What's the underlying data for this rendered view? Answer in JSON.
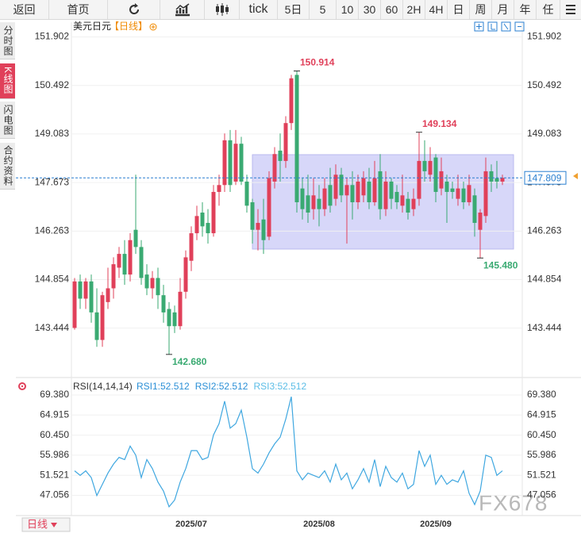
{
  "toolbar": {
    "items": [
      "返回",
      "首页",
      "tick",
      "5日",
      "5",
      "10",
      "30",
      "60",
      "2H",
      "4H",
      "日",
      "周",
      "月",
      "年",
      "任"
    ]
  },
  "sidebar": {
    "items": [
      "分时图",
      "K线图",
      "闪电图",
      "合约资料"
    ]
  },
  "footer": {
    "period_button": "日线",
    "watermark": "FX678"
  },
  "chart_data": [
    {
      "type": "candlestick",
      "title": "美元日元",
      "subtitle": "【日线】",
      "categories": [
        null,
        null,
        null,
        null,
        null,
        null,
        null,
        null,
        null,
        null,
        null,
        null,
        null,
        null,
        null,
        null,
        null,
        null,
        null,
        null,
        null,
        "2025/07",
        null,
        null,
        null,
        null,
        null,
        null,
        null,
        null,
        null,
        null,
        null,
        null,
        null,
        null,
        null,
        null,
        null,
        null,
        null,
        null,
        null,
        null,
        "2025/08",
        null,
        null,
        null,
        null,
        null,
        null,
        null,
        null,
        null,
        null,
        null,
        null,
        null,
        null,
        null,
        null,
        null,
        null,
        null,
        null,
        "2025/09",
        null,
        null,
        null,
        null,
        null,
        null,
        null,
        null,
        null,
        null,
        null,
        null
      ],
      "open": [
        143.45,
        144.8,
        144.3,
        144.8,
        143.9,
        143.1,
        144.2,
        144.6,
        145.2,
        145.6,
        145.0,
        146.3,
        145.8,
        145.0,
        144.6,
        144.9,
        144.4,
        144.0,
        143.9,
        143.5,
        144.5,
        145.4,
        146.2,
        146.8,
        146.5,
        146.2,
        147.4,
        147.6,
        148.9,
        147.7,
        148.8,
        147.7,
        147.1,
        146.3,
        146.6,
        146.1,
        147.7,
        148.6,
        148.3,
        149.4,
        150.8,
        147.5,
        147.3,
        146.9,
        147.2,
        146.9,
        147.6,
        147.2,
        147.9,
        147.3,
        147.6,
        147.1,
        147.3,
        147.7,
        147.1,
        148.0,
        146.9,
        147.7,
        147.4,
        147.0,
        147.2,
        146.9,
        147.2,
        148.3,
        147.9,
        148.4,
        147.5,
        147.7,
        147.5,
        147.2,
        147.5,
        147.1,
        147.3,
        146.3,
        146.7,
        148.0,
        147.8,
        147.7
      ],
      "high": [
        144.9,
        145.0,
        144.9,
        145.0,
        144.6,
        144.5,
        145.2,
        145.5,
        145.8,
        146.0,
        146.2,
        147.9,
        146.0,
        145.3,
        145.1,
        145.2,
        144.7,
        144.2,
        144.1,
        144.9,
        145.7,
        146.4,
        147.0,
        147.1,
        146.9,
        147.6,
        147.9,
        149.1,
        149.2,
        149.2,
        149.0,
        147.9,
        147.2,
        146.9,
        147.2,
        148.0,
        148.7,
        149.1,
        149.6,
        150.8,
        150.914,
        147.8,
        147.9,
        147.8,
        147.6,
        147.8,
        148.1,
        148.2,
        148.1,
        147.8,
        148.0,
        147.9,
        148.0,
        148.1,
        148.3,
        148.5,
        148.0,
        147.8,
        147.6,
        147.9,
        147.4,
        147.5,
        149.134,
        148.9,
        148.7,
        148.5,
        148.4,
        147.9,
        147.7,
        147.9,
        147.7,
        147.9,
        147.5,
        146.9,
        148.4,
        148.2,
        148.3,
        147.9
      ],
      "low": [
        143.4,
        144.0,
        144.0,
        143.6,
        142.9,
        142.9,
        144.0,
        144.3,
        144.9,
        144.7,
        144.8,
        145.6,
        144.7,
        144.4,
        144.3,
        144.0,
        143.6,
        142.68,
        143.3,
        143.4,
        144.3,
        145.1,
        146.0,
        146.1,
        145.9,
        146.1,
        147.0,
        147.4,
        147.4,
        147.6,
        147.6,
        146.8,
        145.9,
        145.7,
        145.6,
        146.0,
        147.5,
        147.7,
        148.1,
        149.2,
        146.8,
        146.6,
        146.5,
        146.6,
        146.4,
        146.7,
        146.8,
        147.0,
        147.1,
        145.9,
        146.6,
        146.9,
        147.1,
        146.9,
        147.0,
        146.6,
        146.7,
        146.9,
        146.9,
        146.8,
        146.6,
        146.7,
        147.0,
        147.7,
        147.7,
        147.1,
        147.3,
        146.5,
        147.2,
        147.0,
        146.9,
        147.0,
        146.1,
        145.48,
        146.5,
        147.4,
        147.5,
        147.6
      ],
      "close": [
        144.8,
        144.3,
        144.8,
        143.9,
        143.1,
        144.4,
        144.6,
        145.3,
        145.6,
        145.0,
        146.0,
        145.8,
        144.9,
        144.6,
        144.9,
        144.4,
        143.9,
        143.5,
        143.5,
        144.5,
        145.5,
        146.2,
        146.7,
        146.4,
        146.2,
        147.4,
        147.6,
        148.9,
        147.6,
        148.8,
        147.7,
        147.0,
        146.3,
        146.5,
        146.0,
        147.8,
        148.5,
        148.3,
        149.4,
        150.7,
        147.1,
        146.9,
        146.8,
        147.3,
        146.9,
        147.5,
        147.0,
        147.9,
        147.3,
        147.6,
        147.1,
        147.7,
        147.8,
        147.1,
        147.8,
        146.9,
        147.7,
        147.2,
        147.1,
        147.3,
        146.8,
        147.2,
        148.3,
        148.0,
        148.3,
        147.4,
        148.0,
        147.4,
        147.4,
        147.5,
        147.1,
        147.6,
        146.5,
        146.8,
        148.0,
        147.7,
        147.7,
        147.809
      ],
      "up_color": "#e0405a",
      "down_color": "#3aaa72",
      "ylim": [
        142.1,
        152.33
      ],
      "yticks": [
        151.902,
        150.492,
        149.083,
        147.673,
        146.263,
        144.854,
        143.444
      ],
      "last_price": 147.809,
      "annotations": [
        150.914,
        149.134,
        {
          "value": 145.48,
          "label": "145.480"
        },
        {
          "value": 142.68,
          "label": "142.680"
        }
      ],
      "grid": true
    },
    {
      "type": "line",
      "title": "RSI(14,14,14)",
      "values": [
        52.5,
        51.5,
        52.5,
        51,
        47,
        49.5,
        52,
        54,
        55.5,
        55,
        58,
        56,
        51,
        55,
        53,
        50,
        48,
        44.5,
        46,
        50,
        53,
        57,
        57,
        55,
        55.5,
        60.5,
        63,
        68,
        62,
        63,
        66,
        60,
        53,
        52,
        54,
        56.5,
        58.5,
        60,
        64,
        69,
        52.5,
        50.5,
        52,
        51.5,
        51,
        52.5,
        50,
        54,
        50.5,
        52,
        48.5,
        50.5,
        53,
        50,
        55,
        49,
        53.5,
        51,
        50,
        52,
        48.5,
        49.5,
        57,
        53.5,
        56,
        49.5,
        51.5,
        49.5,
        50.5,
        50,
        52.5,
        47.5,
        45,
        48,
        56,
        55.5,
        51.5,
        52.512
      ],
      "color": "#3fa7e0",
      "legend": [
        {
          "name": "RSI1:52.512",
          "color": "#2a8fd6"
        },
        {
          "name": "RSI2:52.512",
          "color": "#2a8fd6"
        },
        {
          "name": "RSI3:52.512",
          "color": "#5bbde6"
        }
      ],
      "ylim": [
        42.2,
        72.91
      ],
      "yticks": [
        {
          "value": 69.38,
          "label": "69.380"
        },
        64.915,
        {
          "value": 60.45,
          "label": "60.450"
        },
        55.986,
        51.521,
        47.056
      ],
      "grid": true
    }
  ]
}
